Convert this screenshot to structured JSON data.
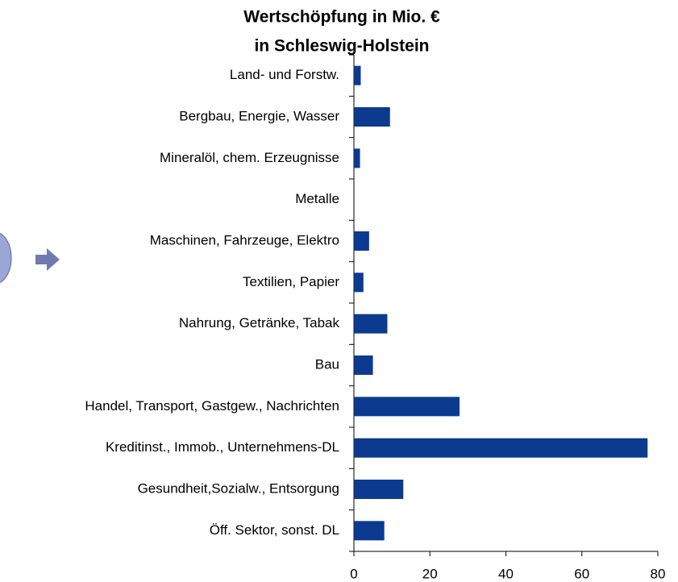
{
  "chart_data": {
    "type": "barh",
    "title": [
      "Wertschöpfung in Mio. €",
      "in Schleswig-Holstein"
    ],
    "categories": [
      "Land- und Forstw.",
      "Bergbau, Energie, Wasser",
      "Mineralöl, chem. Erzeugnisse",
      "Metalle",
      "Maschinen, Fahrzeuge,  Elektro",
      "Textilien, Papier",
      "Nahrung, Getränke, Tabak",
      "Bau",
      "Handel, Transport, Gastgew., Nachrichten",
      "Kreditinst.,  Immob., Unternehmens-DL",
      "Gesundheit,Sozialw.,  Entsorgung",
      "Öff. Sektor, sonst. DL"
    ],
    "values": [
      1.8,
      9.5,
      1.6,
      0,
      4,
      2.5,
      8.8,
      5,
      27.8,
      77.3,
      13,
      8
    ],
    "color": "#0b3a8f",
    "xlim": [
      0,
      80
    ],
    "xticks": [
      0,
      20,
      40,
      60,
      80
    ],
    "grid": false
  }
}
